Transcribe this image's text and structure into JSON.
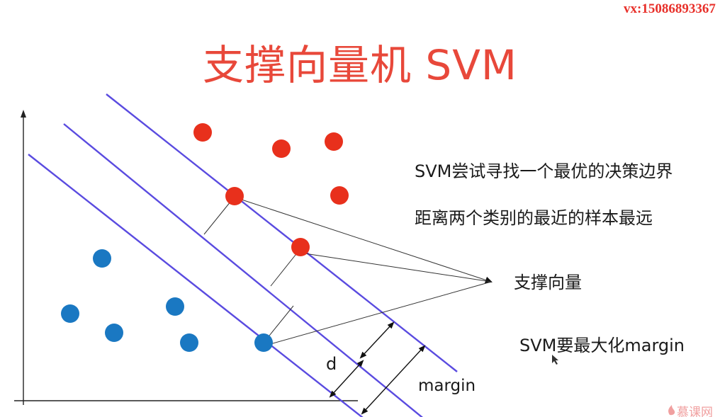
{
  "watermark": "vx:15086893367",
  "title": "支撑向量机 SVM",
  "notes": {
    "line1": "SVM尝试寻找一个最优的决策边界",
    "line2": "距离两个类别的最近的样本最远",
    "support_vectors": "支撑向量",
    "maximize": "SVM要最大化margin"
  },
  "labels": {
    "d": "d",
    "margin": "margin"
  },
  "logo_text": "慕课网",
  "colors": {
    "title": "#e8483a",
    "class_red": "#e8301c",
    "class_blue": "#1a78c2",
    "boundary_lines": "#5a4be0",
    "axes": "#222222"
  }
}
